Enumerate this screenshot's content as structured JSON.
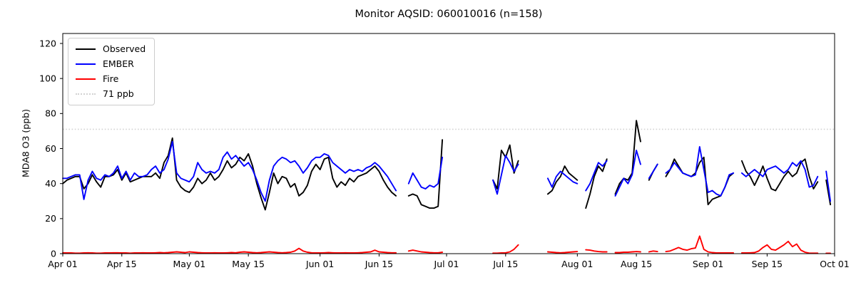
{
  "title": "Monitor AQSID: 060010016 (n=158)",
  "ylabel": "MDA8 O3 (ppb)",
  "legend": {
    "items": [
      {
        "label": "Observed",
        "color": "#000000",
        "style": "solid"
      },
      {
        "label": "EMBER",
        "color": "#0000ff",
        "style": "solid"
      },
      {
        "label": "Fire",
        "color": "#ff0000",
        "style": "solid"
      },
      {
        "label": "71 ppb",
        "color": "#d3d3d3",
        "style": "dotted"
      }
    ]
  },
  "chart_data": {
    "type": "line",
    "title": "Monitor AQSID: 060010016 (n=158)",
    "xlabel": "",
    "ylabel": "MDA8 O3 (ppb)",
    "n_points": 158,
    "ylim": [
      0,
      126
    ],
    "y_ticks": [
      0,
      20,
      40,
      60,
      80,
      100,
      120
    ],
    "threshold": {
      "value": 71,
      "label": "71 ppb",
      "color": "#d3d3d3",
      "style": "dotted"
    },
    "x_start_date": "Apr 01",
    "x_end_date": "Oct 01",
    "x_step": "1 day",
    "x_total_days": 183,
    "x_tick_days": [
      0,
      14,
      30,
      44,
      61,
      75,
      91,
      105,
      122,
      136,
      153,
      167,
      183
    ],
    "x_tick_labels": [
      "Apr 01",
      "Apr 15",
      "May 01",
      "May 15",
      "Jun 01",
      "Jun 15",
      "Jul 01",
      "Jul 15",
      "Aug 01",
      "Aug 15",
      "Sep 01",
      "Sep 15",
      "Oct 01"
    ],
    "grid": false,
    "legend_position": "upper left",
    "series": [
      {
        "name": "Observed",
        "color": "#000000",
        "values": [
          40,
          42,
          43,
          44,
          44,
          37,
          40,
          45,
          41,
          38,
          44,
          44,
          45,
          48,
          42,
          46,
          41,
          42,
          43,
          44,
          44,
          44,
          46,
          43,
          52,
          56,
          66,
          42,
          38,
          36,
          35,
          38,
          43,
          40,
          42,
          46,
          42,
          44,
          48,
          53,
          49,
          51,
          55,
          53,
          57,
          50,
          40,
          32,
          25,
          35,
          46,
          40,
          44,
          43,
          38,
          40,
          33,
          35,
          39,
          47,
          51,
          48,
          54,
          55,
          43,
          38,
          41,
          39,
          43,
          41,
          44,
          45,
          46,
          48,
          50,
          47,
          42,
          38,
          35,
          33,
          null,
          null,
          33,
          34,
          33,
          28,
          27,
          26,
          26,
          27,
          65,
          null,
          null,
          null,
          null,
          null,
          null,
          null,
          null,
          null,
          null,
          null,
          42,
          37,
          59,
          55,
          62,
          46,
          53,
          null,
          null,
          null,
          null,
          null,
          null,
          34,
          36,
          41,
          44,
          50,
          46,
          44,
          42,
          null,
          26,
          34,
          44,
          50,
          47,
          54,
          null,
          34,
          40,
          43,
          42,
          46,
          76,
          64,
          null,
          42,
          47,
          51,
          null,
          44,
          48,
          54,
          50,
          46,
          45,
          44,
          46,
          52,
          55,
          28,
          31,
          32,
          33,
          38,
          44,
          46,
          null,
          53,
          47,
          44,
          39,
          44,
          50,
          43,
          37,
          36,
          40,
          44,
          47,
          44,
          46,
          52,
          54,
          44,
          37,
          41,
          null,
          42,
          28,
          null
        ]
      },
      {
        "name": "EMBER",
        "color": "#0000ff",
        "values": [
          43,
          43,
          44,
          45,
          45,
          31,
          42,
          47,
          43,
          42,
          45,
          44,
          46,
          50,
          43,
          47,
          42,
          46,
          44,
          44,
          45,
          48,
          50,
          46,
          48,
          54,
          64,
          46,
          43,
          42,
          41,
          44,
          52,
          48,
          46,
          47,
          46,
          48,
          55,
          58,
          54,
          56,
          53,
          50,
          52,
          48,
          42,
          35,
          30,
          42,
          50,
          53,
          55,
          54,
          52,
          53,
          50,
          46,
          49,
          53,
          55,
          55,
          57,
          56,
          52,
          50,
          48,
          46,
          48,
          47,
          48,
          47,
          49,
          50,
          52,
          50,
          47,
          44,
          40,
          36,
          null,
          null,
          40,
          46,
          42,
          38,
          37,
          39,
          38,
          40,
          55,
          null,
          null,
          null,
          null,
          null,
          null,
          null,
          null,
          null,
          null,
          null,
          42,
          34,
          45,
          56,
          52,
          47,
          51,
          null,
          null,
          null,
          null,
          null,
          null,
          43,
          38,
          44,
          47,
          45,
          43,
          41,
          40,
          null,
          36,
          40,
          46,
          52,
          50,
          53,
          null,
          33,
          38,
          43,
          40,
          45,
          59,
          51,
          null,
          43,
          47,
          51,
          null,
          46,
          48,
          52,
          49,
          46,
          45,
          44,
          45,
          61,
          48,
          35,
          36,
          34,
          33,
          38,
          45,
          46,
          null,
          46,
          44,
          46,
          48,
          46,
          44,
          48,
          49,
          50,
          48,
          46,
          48,
          52,
          50,
          53,
          48,
          38,
          39,
          44,
          null,
          47,
          30,
          null
        ]
      },
      {
        "name": "Fire",
        "color": "#ff0000",
        "values": [
          0.5,
          0.4,
          0.4,
          0.3,
          0.3,
          0.4,
          0.5,
          0.4,
          0.3,
          0.3,
          0.4,
          0.4,
          0.5,
          0.5,
          0.4,
          0.4,
          0.3,
          0.4,
          0.4,
          0.5,
          0.4,
          0.4,
          0.5,
          0.6,
          0.5,
          0.6,
          0.8,
          1.0,
          0.8,
          0.6,
          1.0,
          0.8,
          0.6,
          0.5,
          0.4,
          0.4,
          0.5,
          0.4,
          0.4,
          0.5,
          0.6,
          0.5,
          0.8,
          1.0,
          0.8,
          0.6,
          0.5,
          0.6,
          0.8,
          1.0,
          0.8,
          0.6,
          0.5,
          0.6,
          0.8,
          1.5,
          3.0,
          1.5,
          0.8,
          0.5,
          0.4,
          0.4,
          0.5,
          0.6,
          0.5,
          0.4,
          0.4,
          0.5,
          0.4,
          0.4,
          0.5,
          0.6,
          0.8,
          1.0,
          2.0,
          1.0,
          0.8,
          0.6,
          0.5,
          0.5,
          null,
          null,
          1.5,
          2.0,
          1.5,
          1.0,
          0.8,
          0.6,
          0.5,
          0.5,
          0.8,
          null,
          null,
          null,
          null,
          null,
          null,
          null,
          null,
          null,
          null,
          null,
          0.3,
          0.3,
          0.4,
          0.5,
          1.0,
          2.5,
          5.0,
          null,
          null,
          null,
          null,
          null,
          null,
          1.0,
          0.8,
          0.6,
          0.5,
          0.6,
          0.8,
          1.0,
          1.2,
          null,
          2.2,
          2.0,
          1.5,
          1.2,
          1.0,
          1.0,
          null,
          0.6,
          0.6,
          0.8,
          0.8,
          1.0,
          1.2,
          1.0,
          null,
          1.0,
          1.5,
          1.2,
          null,
          1.2,
          1.5,
          2.5,
          3.5,
          2.5,
          2.0,
          2.8,
          3.2,
          10.0,
          2.5,
          1.0,
          0.6,
          0.4,
          0.4,
          0.4,
          0.4,
          0.4,
          null,
          0.4,
          0.4,
          0.5,
          0.6,
          1.5,
          3.5,
          5.0,
          2.5,
          2.0,
          3.5,
          5.0,
          7.0,
          4.0,
          5.5,
          2.0,
          0.8,
          0.3,
          0.3,
          0.3,
          null,
          0.2,
          0.2,
          null
        ]
      }
    ]
  }
}
